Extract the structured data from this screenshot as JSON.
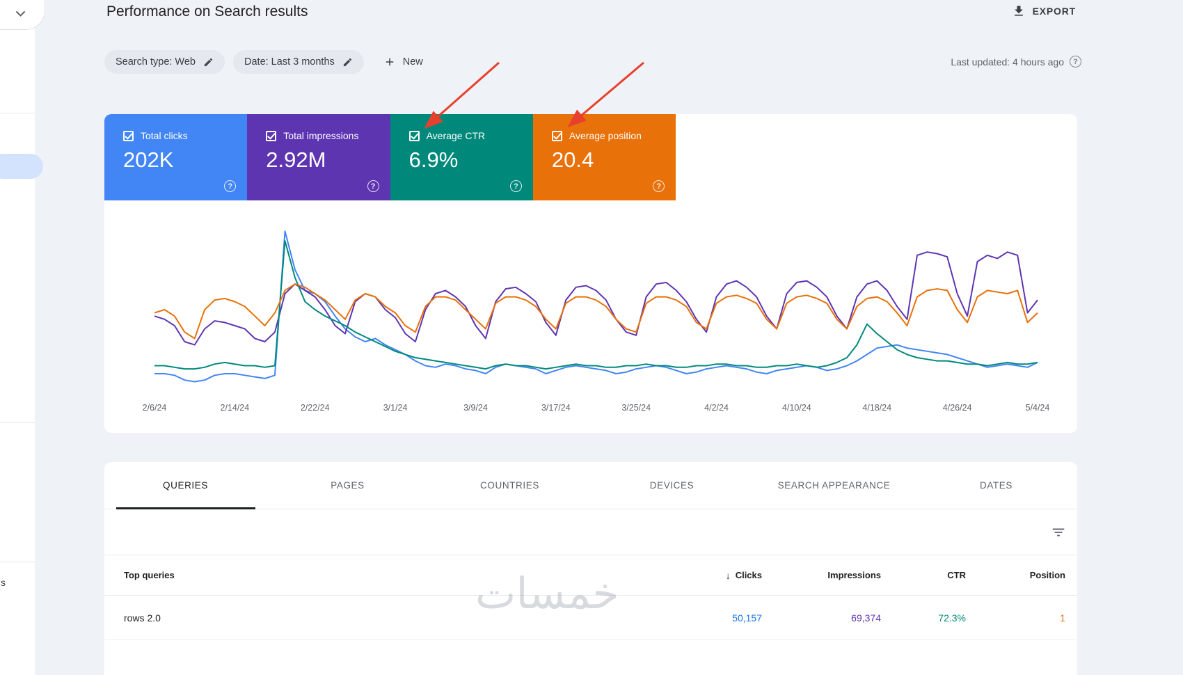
{
  "sidebar": {
    "fragment_label": "s"
  },
  "header": {
    "title": "Performance on Search results",
    "export_label": "EXPORT"
  },
  "filter_bar": {
    "chips": [
      {
        "label": "Search type: Web"
      },
      {
        "label": "Date: Last 3 months"
      }
    ],
    "new_button": "New",
    "last_updated": "Last updated: 4 hours ago"
  },
  "metrics": [
    {
      "label": "Total clicks",
      "value": "202K",
      "color": "#4285f4",
      "checked": true
    },
    {
      "label": "Total impressions",
      "value": "2.92M",
      "color": "#5e35b1",
      "checked": true
    },
    {
      "label": "Average CTR",
      "value": "6.9%",
      "color": "#00897b",
      "checked": true
    },
    {
      "label": "Average position",
      "value": "20.4",
      "color": "#e8710a",
      "checked": true
    }
  ],
  "chart_data": {
    "type": "line",
    "title": "",
    "xlabel": "",
    "ylabel": "",
    "grid": false,
    "legend_position": "none",
    "ylim": [
      0,
      100
    ],
    "note": "values estimated as percent of plot height, daily points 2/6/24 - 5/4/24",
    "x_labels": [
      "2/6/24",
      "2/14/24",
      "2/22/24",
      "3/1/24",
      "3/9/24",
      "3/17/24",
      "3/25/24",
      "4/2/24",
      "4/10/24",
      "4/18/24",
      "4/26/24",
      "5/4/24"
    ],
    "series": [
      {
        "name": "Total clicks",
        "color": "#4285f4",
        "values": [
          10,
          10,
          9,
          6,
          5,
          6,
          9,
          10,
          10,
          9,
          8,
          7,
          9,
          99,
          75,
          62,
          60,
          55,
          46,
          38,
          33,
          30,
          32,
          28,
          25,
          22,
          18,
          15,
          14,
          16,
          15,
          13,
          12,
          10,
          14,
          16,
          15,
          14,
          13,
          10,
          12,
          14,
          15,
          14,
          13,
          12,
          10,
          11,
          13,
          14,
          15,
          14,
          12,
          10,
          11,
          13,
          14,
          15,
          14,
          13,
          11,
          10,
          12,
          13,
          14,
          15,
          14,
          12,
          13,
          15,
          18,
          22,
          26,
          27,
          28,
          26,
          25,
          24,
          23,
          22,
          20,
          18,
          16,
          14,
          15,
          16,
          15,
          14,
          17
        ]
      },
      {
        "name": "Total impressions",
        "color": "#5e35b1",
        "values": [
          46,
          44,
          40,
          30,
          28,
          38,
          43,
          42,
          40,
          38,
          32,
          30,
          36,
          60,
          66,
          62,
          58,
          50,
          40,
          35,
          55,
          60,
          58,
          50,
          45,
          35,
          30,
          50,
          60,
          62,
          58,
          52,
          40,
          32,
          55,
          63,
          64,
          60,
          55,
          42,
          34,
          56,
          64,
          65,
          62,
          56,
          44,
          36,
          34,
          58,
          66,
          67,
          62,
          55,
          44,
          36,
          58,
          66,
          68,
          64,
          58,
          46,
          38,
          60,
          67,
          68,
          64,
          58,
          46,
          38,
          58,
          66,
          68,
          62,
          52,
          44,
          84,
          86,
          85,
          83,
          60,
          46,
          80,
          84,
          82,
          86,
          84,
          48,
          56
        ]
      },
      {
        "name": "Average CTR",
        "color": "#00897b",
        "values": [
          15,
          15,
          14,
          13,
          13,
          14,
          16,
          17,
          16,
          15,
          15,
          14,
          15,
          93,
          70,
          55,
          50,
          46,
          43,
          40,
          36,
          33,
          30,
          27,
          24,
          22,
          20,
          19,
          18,
          17,
          16,
          15,
          14,
          13,
          15,
          16,
          15,
          15,
          14,
          13,
          14,
          15,
          16,
          15,
          15,
          14,
          14,
          15,
          15,
          16,
          15,
          15,
          14,
          14,
          15,
          15,
          16,
          16,
          15,
          15,
          14,
          14,
          15,
          15,
          16,
          15,
          14,
          15,
          17,
          20,
          28,
          41,
          35,
          30,
          25,
          22,
          20,
          19,
          18,
          18,
          17,
          16,
          16,
          15,
          16,
          17,
          16,
          16,
          17
        ]
      },
      {
        "name": "Average position",
        "color": "#e8710a",
        "values": [
          48,
          50,
          46,
          36,
          32,
          50,
          56,
          57,
          55,
          52,
          46,
          40,
          48,
          62,
          66,
          64,
          60,
          56,
          50,
          44,
          56,
          60,
          58,
          52,
          48,
          40,
          36,
          52,
          58,
          58,
          56,
          50,
          44,
          38,
          54,
          58,
          58,
          56,
          52,
          44,
          38,
          54,
          58,
          58,
          56,
          52,
          44,
          38,
          36,
          54,
          58,
          58,
          56,
          52,
          42,
          38,
          54,
          58,
          59,
          57,
          54,
          44,
          38,
          54,
          58,
          59,
          57,
          54,
          44,
          38,
          52,
          57,
          58,
          55,
          48,
          40,
          58,
          62,
          63,
          62,
          50,
          42,
          58,
          62,
          61,
          60,
          62,
          42,
          48
        ]
      }
    ]
  },
  "tabs": [
    {
      "label": "QUERIES",
      "active": true
    },
    {
      "label": "PAGES",
      "active": false
    },
    {
      "label": "COUNTRIES",
      "active": false
    },
    {
      "label": "DEVICES",
      "active": false
    },
    {
      "label": "SEARCH APPEARANCE",
      "active": false
    },
    {
      "label": "DATES",
      "active": false
    }
  ],
  "table": {
    "row_header": "Top queries",
    "columns": [
      "Clicks",
      "Impressions",
      "CTR",
      "Position"
    ],
    "sort_column": "Clicks",
    "sort_direction": "descending",
    "value_colors": {
      "clicks": "#1a73e8",
      "impressions": "#5e35b1",
      "ctr": "#00897b",
      "position": "#e8710a"
    },
    "rows": [
      {
        "query": "rows 2.0",
        "clicks": "50,157",
        "impressions": "69,374",
        "ctr": "72.3%",
        "position": "1"
      }
    ]
  },
  "watermark": "خمسات",
  "annotations": {
    "arrow_color": "#e8402d"
  }
}
